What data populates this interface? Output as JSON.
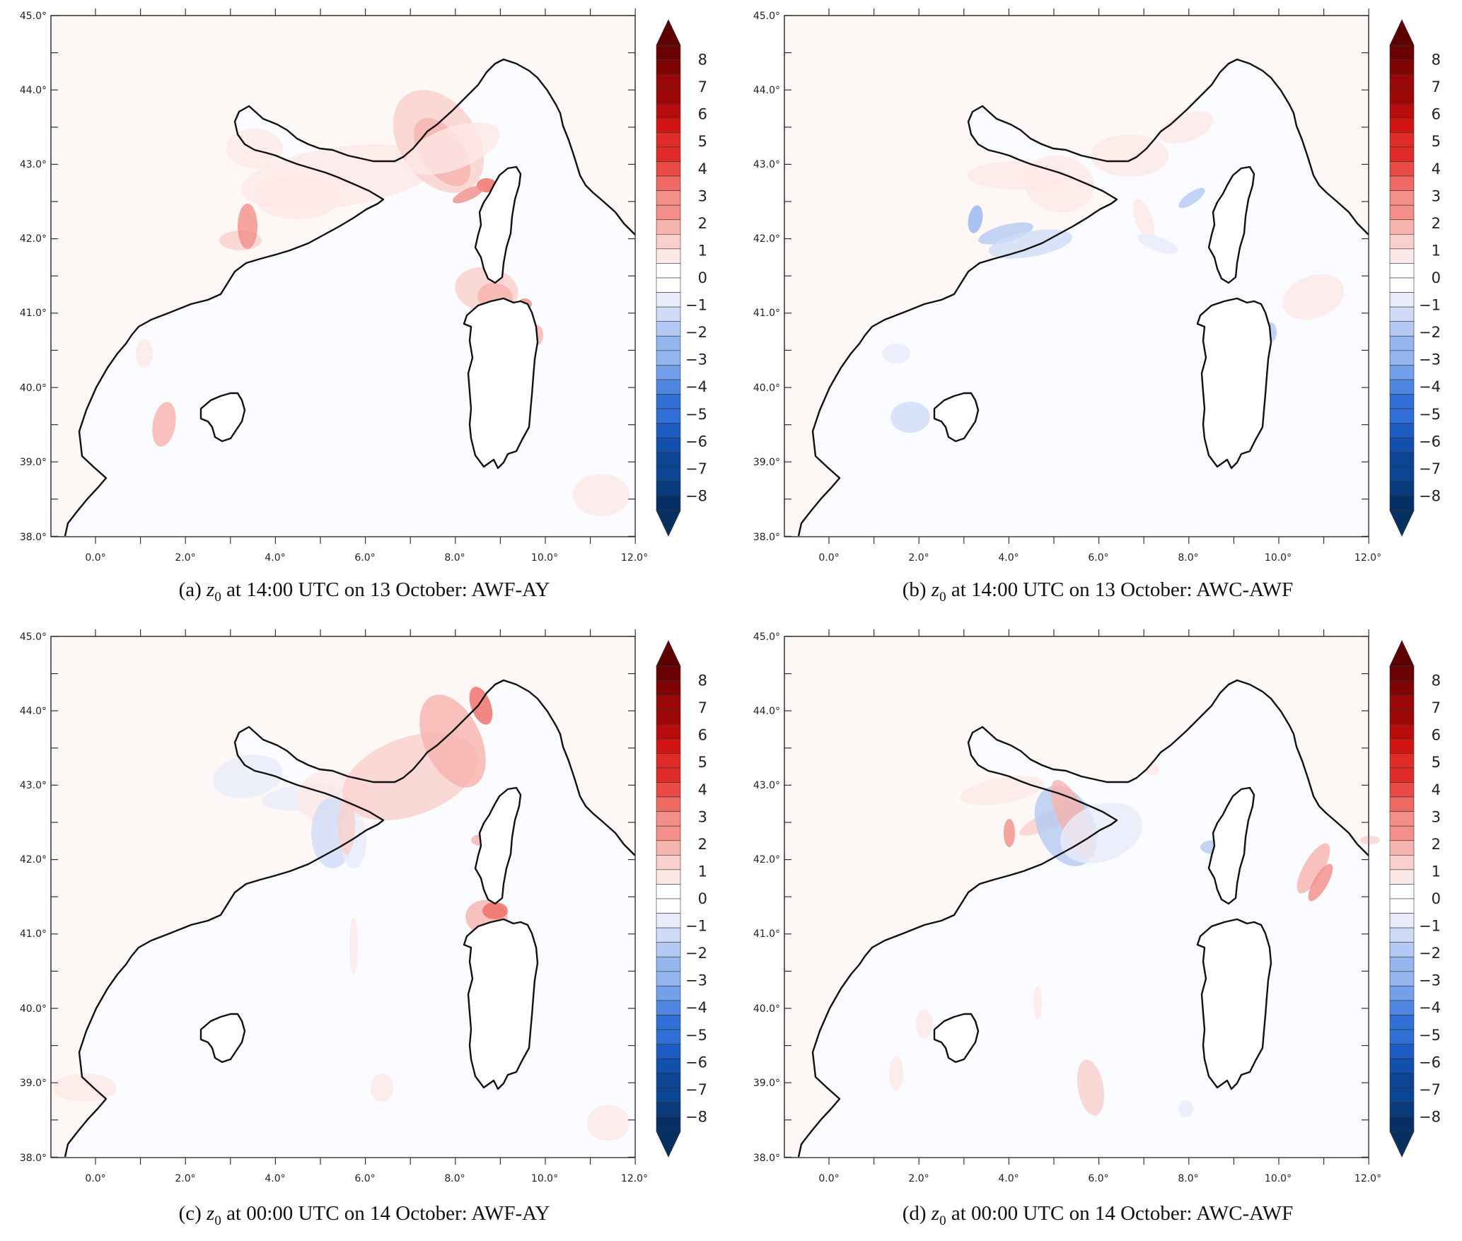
{
  "lon_ticks": [
    "0.0°",
    "2.0°",
    "4.0°",
    "6.0°",
    "8.0°",
    "10.0°",
    "12.0°"
  ],
  "lat_ticks": [
    "45.0°",
    "44.0°",
    "43.0°",
    "42.0°",
    "41.0°",
    "40.0°",
    "39.0°",
    "38.0°"
  ],
  "colorbar": {
    "labels": [
      "8",
      "7",
      "6",
      "5",
      "4",
      "3",
      "2",
      "1",
      "0",
      "−1",
      "−2",
      "−3",
      "−4",
      "−5",
      "−6",
      "−7",
      "−8"
    ],
    "colors": {
      "pos": [
        "#fce8e6",
        "#fad0cc",
        "#f7b3ad",
        "#f38f88",
        "#ee6a63",
        "#e94a44",
        "#e02c28",
        "#d01512",
        "#b80d0c",
        "#9b0706",
        "#810405",
        "#6a0203"
      ],
      "neg": [
        "#e8ecfa",
        "#d0dcf7",
        "#b4c9f3",
        "#95b5ef",
        "#73a0ea",
        "#4f86e2",
        "#2f6fd6",
        "#1d5cc4",
        "#1150ac",
        "#0b4594",
        "#083a7c",
        "#062f66"
      ],
      "zero": "#ffffff",
      "top_arrow": "#5e0000",
      "bottom_arrow": "#053060"
    }
  },
  "panels": [
    {
      "id": "a",
      "caption_prefix": "(a) ",
      "symbol": "z",
      "subscript": "0",
      "caption_rest": " at 14:00 UTC on 13 October: AWF-AY"
    },
    {
      "id": "b",
      "caption_prefix": "(b) ",
      "symbol": "z",
      "subscript": "0",
      "caption_rest": " at 14:00 UTC on 13 October: AWC-AWF"
    },
    {
      "id": "c",
      "caption_prefix": "(c) ",
      "symbol": "z",
      "subscript": "0",
      "caption_rest": " at 00:00 UTC on 14 October: AWF-AY"
    },
    {
      "id": "d",
      "caption_prefix": "(d) ",
      "symbol": "z",
      "subscript": "0",
      "caption_rest": " at 00:00 UTC on 14 October: AWC-AWF"
    }
  ]
}
